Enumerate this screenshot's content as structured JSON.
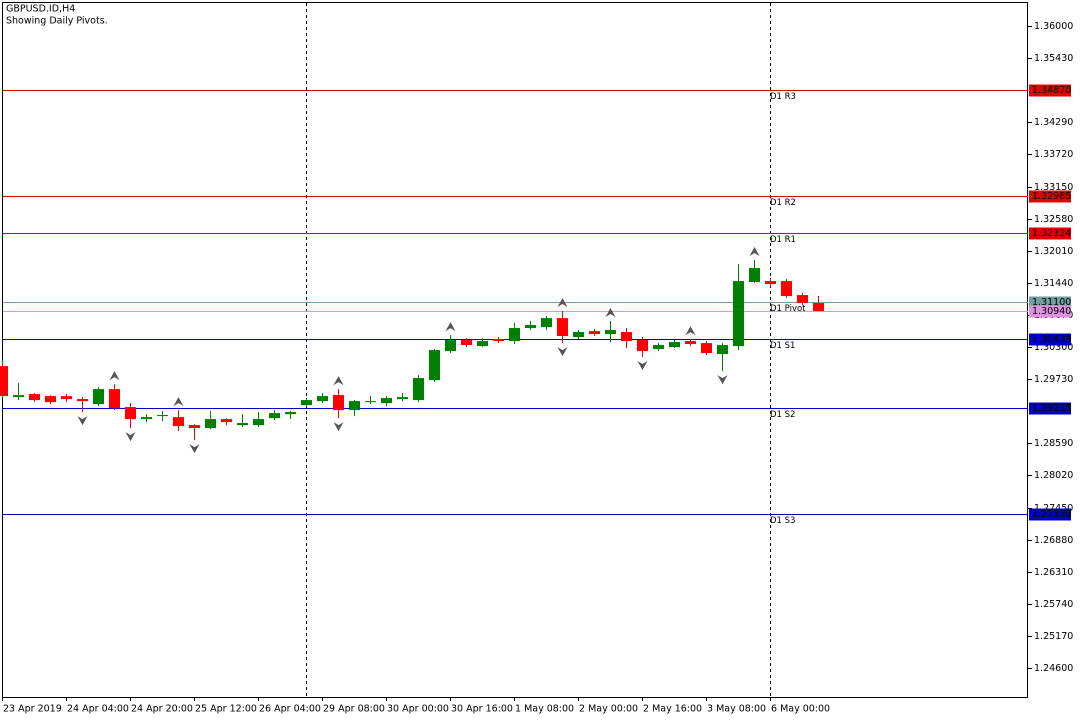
{
  "chart_data": {
    "type": "candlestick",
    "title": "GBPUSD.ID,H4",
    "subtitle": "Showing Daily Pivots.",
    "categories": [
      "23 Apr 2019",
      null,
      null,
      null,
      "24 Apr 04:00",
      null,
      null,
      null,
      "24 Apr 20:00",
      null,
      null,
      null,
      "25 Apr 12:00",
      null,
      null,
      null,
      "26 Apr 04:00",
      null,
      null,
      null,
      "29 Apr 08:00",
      null,
      null,
      null,
      "30 Apr 00:00",
      null,
      null,
      null,
      "30 Apr 16:00",
      null,
      null,
      null,
      "1 May 08:00",
      null,
      null,
      null,
      "2 May 00:00",
      null,
      null,
      null,
      "2 May 16:00",
      null,
      null,
      null,
      "3 May 08:00",
      null,
      null,
      null,
      "6 May 00:00",
      null,
      null,
      null
    ],
    "open": [
      1.29962,
      1.29411,
      1.29465,
      1.29429,
      1.29429,
      1.29376,
      1.29287,
      1.29553,
      1.29234,
      1.29021,
      1.29074,
      1.29056,
      1.28914,
      1.28861,
      1.29021,
      1.28914,
      1.28914,
      1.29038,
      1.29109,
      1.29269,
      1.2934,
      1.29447,
      1.2918,
      1.29322,
      1.29305,
      1.29376,
      1.29358,
      1.29713,
      1.30228,
      1.30424,
      1.30317,
      1.30441,
      1.30406,
      1.30637,
      1.30654,
      1.30814,
      1.30477,
      1.30583,
      1.3053,
      1.30566,
      1.30424,
      1.30264,
      1.30299,
      1.30406,
      1.3037,
      1.30175,
      1.30317,
      1.31454,
      1.31471,
      1.31471,
      1.31223,
      1.31081
    ],
    "high": [
      1.30068,
      1.2966,
      1.29482,
      1.29447,
      1.29465,
      1.29411,
      1.29589,
      1.29642,
      1.29305,
      1.29109,
      1.29163,
      1.2918,
      1.28932,
      1.29163,
      1.29038,
      1.29109,
      1.29145,
      1.2918,
      1.29163,
      1.29394,
      1.29482,
      1.29553,
      1.29358,
      1.29429,
      1.29429,
      1.29482,
      1.29802,
      1.30264,
      1.30512,
      1.30459,
      1.30459,
      1.30477,
      1.30726,
      1.30761,
      1.3085,
      1.30939,
      1.30601,
      1.30619,
      1.30761,
      1.30637,
      1.30477,
      1.3037,
      1.30424,
      1.30441,
      1.30406,
      1.3037,
      1.31773,
      1.31844,
      1.31525,
      1.31507,
      1.31258,
      1.31205
    ],
    "low": [
      1.29394,
      1.29358,
      1.29322,
      1.29287,
      1.29322,
      1.29145,
      1.29251,
      1.2918,
      1.28861,
      1.28967,
      1.28985,
      1.28808,
      1.28648,
      1.28843,
      1.28914,
      1.28879,
      1.28879,
      1.29003,
      1.29021,
      1.29234,
      1.29305,
      1.29038,
      1.29074,
      1.29287,
      1.29251,
      1.2934,
      1.29322,
      1.29678,
      1.30193,
      1.30299,
      1.30299,
      1.3037,
      1.30353,
      1.30601,
      1.30601,
      1.3037,
      1.30441,
      1.30495,
      1.30388,
      1.30282,
      1.30122,
      1.30228,
      1.30282,
      1.30317,
      1.30157,
      1.29873,
      1.30246,
      1.31436,
      1.31365,
      1.3117,
      1.31045,
      1.30939
    ],
    "close": [
      1.29429,
      1.29447,
      1.29358,
      1.29322,
      1.29376,
      1.2934,
      1.29553,
      1.29216,
      1.29021,
      1.29056,
      1.29092,
      1.28896,
      1.28861,
      1.29021,
      1.28967,
      1.2895,
      1.29021,
      1.29127,
      1.29145,
      1.29358,
      1.29429,
      1.2918,
      1.2934,
      1.2934,
      1.29394,
      1.29411,
      1.29749,
      1.30246,
      1.30424,
      1.30335,
      1.30406,
      1.30406,
      1.30637,
      1.3069,
      1.30814,
      1.30495,
      1.30566,
      1.3053,
      1.30601,
      1.30406,
      1.30228,
      1.30335,
      1.30388,
      1.30353,
      1.30193,
      1.30335,
      1.31471,
      1.31702,
      1.31418,
      1.31205,
      1.31081,
      1.3094
    ],
    "up_color": "#008000",
    "down_color": "#ff0000",
    "ylim": [
      1.24086,
      1.36426
    ],
    "yticks": [
      {
        "value": 1.36,
        "label": "1.36000"
      },
      {
        "value": 1.3543,
        "label": "1.35430"
      },
      {
        "value": 1.3429,
        "label": "1.34290"
      },
      {
        "value": 1.3372,
        "label": "1.33720"
      },
      {
        "value": 1.3315,
        "label": "1.33150"
      },
      {
        "value": 1.3258,
        "label": "1.32580"
      },
      {
        "value": 1.3201,
        "label": "1.32010"
      },
      {
        "value": 1.3144,
        "label": "1.31440"
      },
      {
        "value": 1.3087,
        "label": "1.30870"
      },
      {
        "value": 1.303,
        "label": "1.30300"
      },
      {
        "value": 1.2973,
        "label": "1.29730"
      },
      {
        "value": 1.2859,
        "label": "1.28590"
      },
      {
        "value": 1.2802,
        "label": "1.28020"
      },
      {
        "value": 1.2745,
        "label": "1.27450"
      },
      {
        "value": 1.2688,
        "label": "1.26880"
      },
      {
        "value": 1.2631,
        "label": "1.26310"
      },
      {
        "value": 1.2574,
        "label": "1.25740"
      },
      {
        "value": 1.2517,
        "label": "1.25170"
      },
      {
        "value": 1.246,
        "label": "1.24600"
      }
    ],
    "levels": [
      {
        "name": "D1 R3",
        "color": "#e00000",
        "price": {
          "value": 1.3487,
          "label": "1.34870"
        }
      },
      {
        "name": "D1 R2",
        "color": "#e00000",
        "price": {
          "value": 1.32985,
          "label": "1.32985"
        }
      },
      {
        "name": "D1 R1",
        "color": "#e00000",
        "price": {
          "value": 1.32324,
          "label": "1.32324"
        }
      },
      {
        "name": "D1 Pivot",
        "color": "#6f9fa0",
        "price": {
          "value": 1.311,
          "label": "1.31100"
        }
      },
      {
        "name": "D1 S1",
        "color": "#0000c0",
        "price": {
          "value": 1.30439,
          "label": "1.30439"
        }
      },
      {
        "name": "D1 S2",
        "color": "#0000c0",
        "price": {
          "value": 1.29215,
          "label": "1.29215"
        }
      },
      {
        "name": "D1 S3",
        "color": "#0000c0",
        "price": {
          "value": 1.2733,
          "label": "1.27330"
        }
      }
    ],
    "price_line": {
      "color": "#e090e0",
      "price": {
        "value": 1.3094,
        "label": "1.30940"
      }
    }
  }
}
